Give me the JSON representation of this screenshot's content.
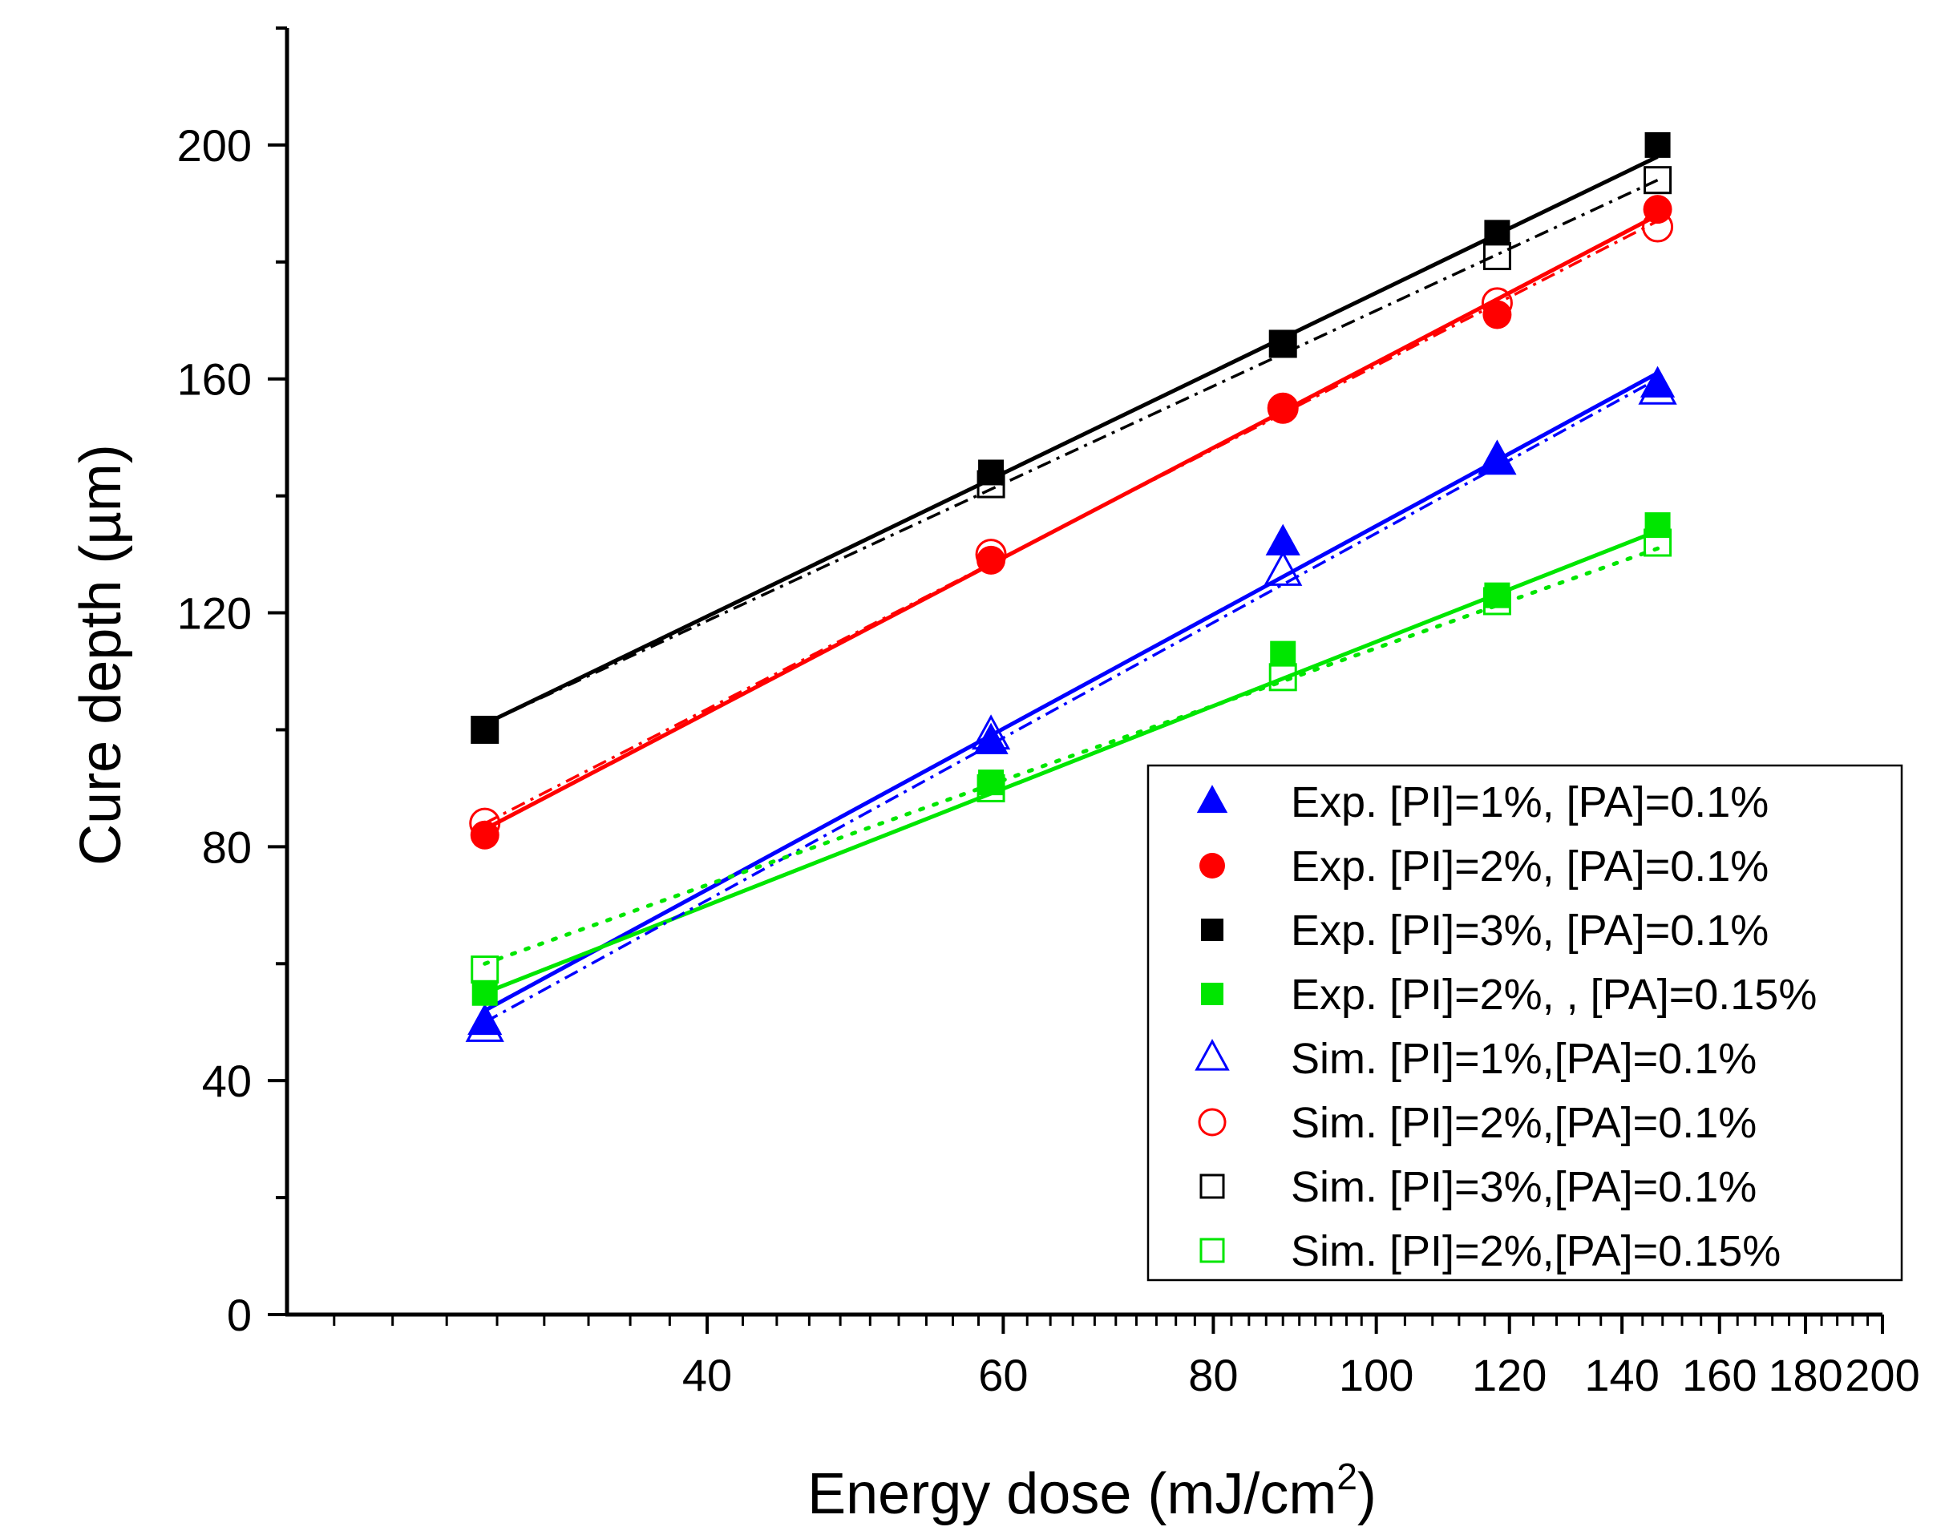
{
  "chart_data": {
    "type": "scatter",
    "title": "",
    "xlabel": "Energy dose (mJ/cm",
    "xlabel_sup": "2",
    "xlabel_end": ")",
    "ylabel": "Cure depth (µm)",
    "xscale": "log",
    "xlim": [
      22.5,
      200
    ],
    "ylim": [
      0,
      220
    ],
    "x_ticks": [
      {
        "value": 40,
        "label": "40"
      },
      {
        "value": 60,
        "label": "60"
      },
      {
        "value": 80,
        "label": "80"
      },
      {
        "value": 100,
        "label": "100"
      },
      {
        "value": 120,
        "label": "120"
      },
      {
        "value": 140,
        "label": "140"
      },
      {
        "value": 160,
        "label": "160"
      },
      {
        "value": 180,
        "label": "180"
      },
      {
        "value": 200,
        "label": "200"
      }
    ],
    "y_ticks": [
      {
        "value": 0,
        "label": "0"
      },
      {
        "value": 40,
        "label": "40"
      },
      {
        "value": 80,
        "label": "80"
      },
      {
        "value": 120,
        "label": "120"
      },
      {
        "value": 160,
        "label": "160"
      },
      {
        "value": 200,
        "label": "200"
      }
    ],
    "legend_position": "bottom-right",
    "x": [
      29.5,
      59,
      88,
      118,
      147
    ],
    "series": [
      {
        "name": "Exp. [PI]=1%, [PA]=0.1%",
        "marker": "triangle",
        "filled": true,
        "color": "#0000ff",
        "line": "solid",
        "values": [
          50,
          98,
          132,
          146,
          159
        ],
        "fit": [
          52,
          161
        ]
      },
      {
        "name": "Exp. [PI]=2%, [PA]=0.1%",
        "marker": "circle",
        "filled": true,
        "color": "#ff0000",
        "line": "solid",
        "values": [
          82,
          129,
          155,
          171,
          189
        ],
        "fit": [
          83,
          188
        ]
      },
      {
        "name": "Exp. [PI]=3%, [PA]=0.1%",
        "marker": "square",
        "filled": true,
        "color": "#000000",
        "line": "solid",
        "values": [
          100,
          144,
          166,
          185,
          200
        ],
        "fit": [
          101,
          198
        ]
      },
      {
        "name": "Exp. [PI]=2%, , [PA]=0.15%",
        "marker": "square",
        "filled": true,
        "color": "#00e600",
        "line": "solid",
        "values": [
          55,
          91,
          113,
          123,
          135
        ],
        "fit": [
          55,
          134
        ]
      },
      {
        "name": "Sim. [PI]=1%,[PA]=0.1%",
        "marker": "triangle",
        "filled": false,
        "color": "#0000ff",
        "line": "dashdot",
        "values": [
          49,
          99,
          127,
          146,
          158
        ],
        "fit": [
          50,
          160
        ]
      },
      {
        "name": "Sim. [PI]=2%,[PA]=0.1%",
        "marker": "circle",
        "filled": false,
        "color": "#ff0000",
        "line": "dashdot",
        "values": [
          84,
          130,
          155,
          173,
          186
        ],
        "fit": [
          84,
          187
        ]
      },
      {
        "name": "Sim. [PI]=3%,[PA]=0.1%",
        "marker": "square",
        "filled": false,
        "color": "#000000",
        "line": "dashdot",
        "values": [
          100,
          142,
          166,
          181,
          194
        ],
        "fit": [
          101,
          194
        ]
      },
      {
        "name": "Sim. [PI]=2%,[PA]=0.15%",
        "marker": "square",
        "filled": false,
        "color": "#00e600",
        "line": "dotted",
        "values": [
          59,
          90,
          109,
          122,
          132
        ],
        "fit": [
          60,
          131
        ]
      }
    ]
  }
}
